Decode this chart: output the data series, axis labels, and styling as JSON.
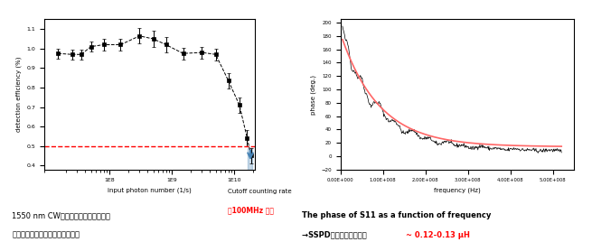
{
  "left_plot": {
    "xlabel": "input photon number (1/s)",
    "ylabel": "detection efficiency (%)",
    "ylim": [
      0.38,
      1.15
    ],
    "yticks": [
      0.4,
      0.5,
      0.6,
      0.7,
      0.8,
      0.9,
      1.0,
      1.1
    ],
    "dashed_line_y": 0.5,
    "dashed_color": "#ff0000",
    "data_x": [
      15000000.0,
      25000000.0,
      35000000.0,
      50000000.0,
      80000000.0,
      150000000.0,
      300000000.0,
      500000000.0,
      800000000.0,
      1500000000.0,
      3000000000.0,
      5000000000.0,
      8000000000.0,
      12000000000.0,
      16000000000.0,
      18500000000.0
    ],
    "data_y": [
      0.975,
      0.97,
      0.97,
      1.01,
      1.02,
      1.02,
      1.065,
      1.05,
      1.02,
      0.975,
      0.98,
      0.97,
      0.835,
      0.71,
      0.54,
      0.45
    ],
    "data_yerr": [
      0.025,
      0.025,
      0.025,
      0.025,
      0.03,
      0.03,
      0.04,
      0.04,
      0.04,
      0.03,
      0.03,
      0.03,
      0.04,
      0.04,
      0.04,
      0.04
    ],
    "cutoff_text1": "Cutoff counting rate",
    "cutoff_text2": "～100MHz 以上",
    "caption1": "1550 nm CWレーザを入射した場合の",
    "caption2": "検出効率－入射フォトン数依存性"
  },
  "right_plot": {
    "xlabel": "frequency (Hz)",
    "ylabel": "phase (deg.)",
    "xlim": [
      0,
      550000000.0
    ],
    "ylim": [
      -20,
      205
    ],
    "xticks": [
      0,
      100000000.0,
      200000000.0,
      300000000.0,
      400000000.0,
      500000000.0
    ],
    "xtick_labels": [
      "0.00E+000",
      "1.00E+008",
      "2.00E+008",
      "3.00E+008",
      "4.00E+008",
      "5.00E+008"
    ],
    "yticks": [
      -20,
      0,
      20,
      40,
      60,
      80,
      100,
      120,
      140,
      160,
      180,
      200
    ],
    "fit_color": "#ff6666",
    "data_color": "#000000",
    "caption1": "The phase of S11 as a function of frequency",
    "caption2": "→SSPDのインダクタンス  ",
    "caption2_red": "~ 0.12-0.13 μH"
  }
}
